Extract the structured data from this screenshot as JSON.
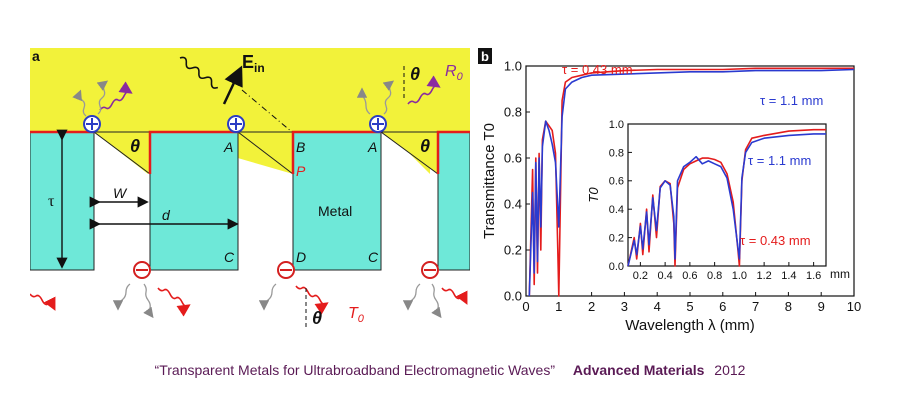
{
  "panel_a": {
    "panel_label": "a",
    "labels": {
      "E_in_base": "E",
      "E_in_sub": "in",
      "R0_base": "R",
      "R0_sub": "0",
      "T0_base": "T",
      "T0_sub": "0",
      "theta": "θ",
      "tau": "τ",
      "W": "W",
      "d": "d",
      "A": "A",
      "B": "B",
      "C": "C",
      "D": "D",
      "P": "P",
      "metal": "Metal"
    },
    "colors": {
      "dielectric": "#f2f23a",
      "metal": "#6ee8d8",
      "boundary": "#e41c1c",
      "charge_plus": "#2b3cc4",
      "charge_minus": "#d42020"
    }
  },
  "panel_b": {
    "panel_label": "b",
    "annotations": {
      "main_red": "τ = 0.43 mm",
      "main_blue": "τ = 1.1 mm",
      "inset_blue": "τ = 1.1 mm",
      "inset_red": "τ = 0.43 mm",
      "inset_unit": "mm"
    },
    "colors": {
      "tau_043": "#e41c1c",
      "tau_11": "#2a3ad0"
    }
  },
  "chart_data": [
    {
      "type": "line",
      "ylabel": "Transmittance T0",
      "xlabel": "Wavelength λ (mm)",
      "xlim": [
        0,
        10
      ],
      "ylim": [
        0,
        1.0
      ],
      "x_ticks": [
        "0",
        "1",
        "2",
        "3",
        "4",
        "5",
        "6",
        "7",
        "8",
        "9",
        "10"
      ],
      "y_ticks": [
        "0.0",
        "0.2",
        "0.4",
        "0.6",
        "0.8",
        "1.0"
      ],
      "series": [
        {
          "name": "τ = 0.43 mm",
          "x": [
            0.1,
            0.2,
            0.25,
            0.3,
            0.35,
            0.4,
            0.45,
            0.5,
            0.6,
            0.7,
            0.8,
            0.9,
            0.97,
            1.0,
            1.1,
            1.2,
            1.4,
            1.7,
            2,
            3,
            4,
            5,
            6,
            7,
            8,
            9,
            10
          ],
          "y": [
            0.0,
            0.55,
            0.05,
            0.6,
            0.1,
            0.62,
            0.2,
            0.68,
            0.76,
            0.74,
            0.72,
            0.62,
            0.2,
            0.0,
            0.85,
            0.93,
            0.95,
            0.96,
            0.97,
            0.98,
            0.985,
            0.985,
            0.985,
            0.99,
            0.99,
            0.99,
            0.99
          ]
        },
        {
          "name": "τ = 1.1 mm",
          "x": [
            0.1,
            0.2,
            0.25,
            0.3,
            0.35,
            0.4,
            0.45,
            0.5,
            0.6,
            0.7,
            0.8,
            0.9,
            1.0,
            1.1,
            1.2,
            1.4,
            1.7,
            2,
            3,
            4,
            5,
            6,
            7,
            8,
            9,
            10
          ],
          "y": [
            0.0,
            0.45,
            0.1,
            0.58,
            0.15,
            0.6,
            0.3,
            0.65,
            0.76,
            0.72,
            0.66,
            0.58,
            0.3,
            0.78,
            0.9,
            0.93,
            0.95,
            0.96,
            0.965,
            0.97,
            0.975,
            0.975,
            0.98,
            0.98,
            0.98,
            0.985
          ]
        }
      ]
    },
    {
      "type": "line",
      "ylabel": "T0",
      "xlabel": "mm",
      "xlim": [
        0.1,
        1.7
      ],
      "ylim": [
        0,
        1.0
      ],
      "x_ticks": [
        "0.2",
        "0.4",
        "0.6",
        "0.8",
        "1.0",
        "1.2",
        "1.4",
        "1.6"
      ],
      "y_ticks": [
        "0.0",
        "0.2",
        "0.4",
        "0.6",
        "0.8",
        "1.0"
      ],
      "series": [
        {
          "name": "τ = 0.43 mm",
          "x": [
            0.1,
            0.15,
            0.17,
            0.2,
            0.22,
            0.25,
            0.27,
            0.3,
            0.33,
            0.36,
            0.4,
            0.44,
            0.47,
            0.48,
            0.5,
            0.55,
            0.6,
            0.65,
            0.7,
            0.75,
            0.8,
            0.85,
            0.9,
            0.95,
            0.99,
            1.0,
            1.02,
            1.05,
            1.1,
            1.2,
            1.4,
            1.6,
            1.7
          ],
          "y": [
            0.0,
            0.2,
            0.05,
            0.3,
            0.08,
            0.4,
            0.1,
            0.5,
            0.2,
            0.56,
            0.6,
            0.58,
            0.3,
            0.0,
            0.55,
            0.68,
            0.72,
            0.74,
            0.76,
            0.76,
            0.75,
            0.73,
            0.65,
            0.45,
            0.1,
            0.0,
            0.6,
            0.82,
            0.9,
            0.92,
            0.95,
            0.96,
            0.96
          ]
        },
        {
          "name": "τ = 1.1 mm",
          "x": [
            0.1,
            0.15,
            0.17,
            0.2,
            0.22,
            0.25,
            0.27,
            0.3,
            0.33,
            0.36,
            0.4,
            0.44,
            0.47,
            0.48,
            0.5,
            0.55,
            0.6,
            0.65,
            0.7,
            0.75,
            0.8,
            0.85,
            0.9,
            0.95,
            0.99,
            1.0,
            1.02,
            1.05,
            1.1,
            1.2,
            1.4,
            1.6,
            1.7
          ],
          "y": [
            0.0,
            0.18,
            0.08,
            0.28,
            0.12,
            0.38,
            0.15,
            0.48,
            0.25,
            0.55,
            0.6,
            0.57,
            0.35,
            0.05,
            0.6,
            0.7,
            0.73,
            0.77,
            0.72,
            0.74,
            0.72,
            0.7,
            0.62,
            0.4,
            0.12,
            0.05,
            0.62,
            0.8,
            0.87,
            0.9,
            0.92,
            0.93,
            0.93
          ]
        }
      ]
    }
  ],
  "caption": {
    "title": "“Transparent Metals for Ultrabroadband Electromagnetic Waves”",
    "journal": "Advanced Materials",
    "year": "2012"
  }
}
